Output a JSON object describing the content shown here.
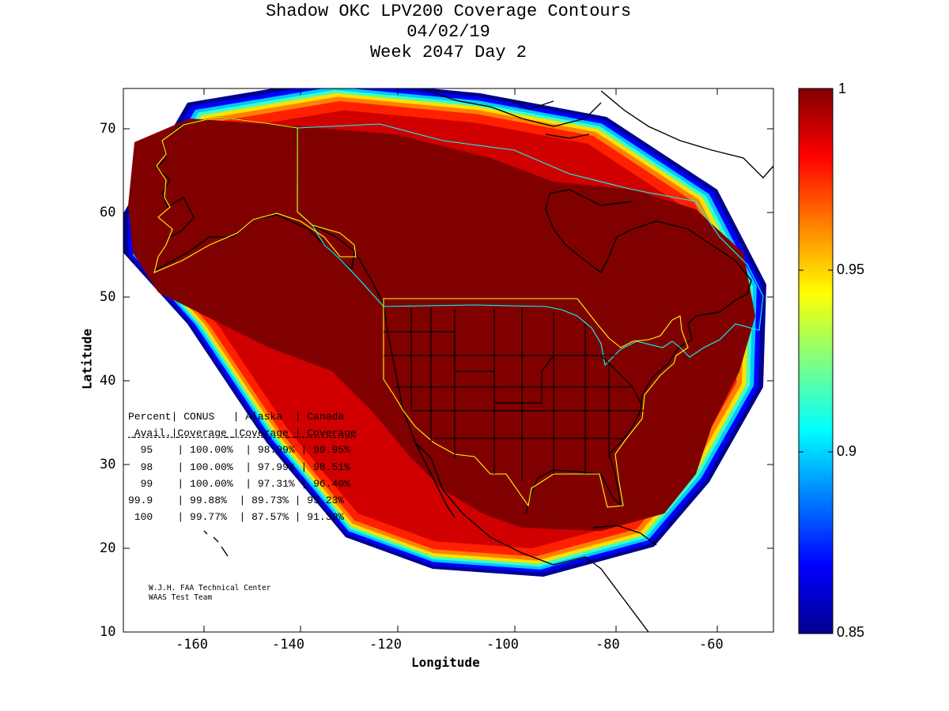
{
  "title": {
    "line1": "Shadow OKC LPV200 Coverage Contours",
    "line2": "04/02/19",
    "line3": "Week 2047 Day 2"
  },
  "axes": {
    "xlabel": "Longitude",
    "ylabel": "Latitude",
    "xticks": [
      "-160",
      "-140",
      "-120",
      "-100",
      "-80",
      "-60"
    ],
    "yticks": [
      "70",
      "60",
      "50",
      "40",
      "30",
      "20",
      "10"
    ],
    "xlim": [
      -175,
      -50
    ],
    "ylim": [
      10,
      75
    ]
  },
  "colorbar": {
    "ticks": [
      "1",
      "0.95",
      "0.9",
      "0.85"
    ],
    "range": [
      0.85,
      1
    ],
    "colormap": "jet",
    "colors": [
      "#00008f",
      "#0000ff",
      "#00ffff",
      "#ffff00",
      "#ff0000",
      "#800000"
    ]
  },
  "colors": {
    "coverage_core": "#800000",
    "region_outline_yellow": "#ffff00",
    "region_outline_cyan": "#00ffff",
    "coastline": "#000000"
  },
  "stats_table": {
    "header1": [
      "Percent|",
      "CONUS",
      "| Alaska",
      "| Canada"
    ],
    "header2": [
      "Avail.|",
      "Coverage",
      "|Coverage",
      "| Coverage"
    ],
    "rows": [
      [
        "95",
        "100.00%",
        "98.99%",
        "99.95%"
      ],
      [
        "98",
        "100.00%",
        "97.99%",
        "98.51%"
      ],
      [
        "99",
        "100.00%",
        "97.31%",
        "96.40%"
      ],
      [
        "99.9",
        "99.88%",
        "89.73%",
        "93.23%"
      ],
      [
        "100",
        "99.77%",
        "87.57%",
        "91.39%"
      ]
    ]
  },
  "credit": {
    "line1": "W.J.H. FAA Technical Center",
    "line2": "WAAS Test Team"
  }
}
